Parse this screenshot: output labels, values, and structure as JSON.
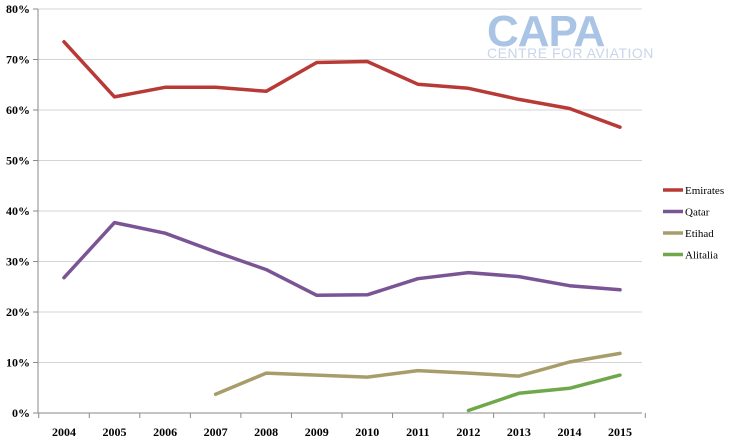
{
  "logo": {
    "main": "CAPA",
    "sub": "CENTRE FOR AVIATION"
  },
  "chart_data": {
    "type": "line",
    "title": "",
    "xlabel": "",
    "ylabel": "",
    "ylim": [
      0,
      80
    ],
    "y_ticks": [
      0,
      10,
      20,
      30,
      40,
      50,
      60,
      70,
      80
    ],
    "y_tick_labels": [
      "0%",
      "10%",
      "20%",
      "30%",
      "40%",
      "50%",
      "60%",
      "70%",
      "80%"
    ],
    "x": [
      "2004",
      "2005",
      "2006",
      "2007",
      "2008",
      "2009",
      "2010",
      "2011",
      "2012",
      "2013",
      "2014",
      "2015"
    ],
    "grid": true,
    "legend_position": "right",
    "series": [
      {
        "name": "Emirates",
        "color": "#b83a36",
        "values": [
          73.5,
          62.6,
          64.5,
          64.5,
          63.7,
          69.4,
          69.6,
          65.1,
          64.3,
          62.1,
          60.3,
          56.6
        ]
      },
      {
        "name": "Qatar",
        "color": "#7a5494",
        "values": [
          26.8,
          37.7,
          35.6,
          31.9,
          28.4,
          23.3,
          23.4,
          26.6,
          27.8,
          27.0,
          25.2,
          24.4
        ]
      },
      {
        "name": "Etihad",
        "color": "#a89d6a",
        "values": [
          null,
          null,
          null,
          3.7,
          7.9,
          7.5,
          7.1,
          8.4,
          7.9,
          7.3,
          10.1,
          11.8
        ]
      },
      {
        "name": "Alitalia",
        "color": "#6fa84a",
        "values": [
          null,
          null,
          null,
          null,
          null,
          null,
          null,
          null,
          0.5,
          3.9,
          4.9,
          7.5
        ]
      }
    ]
  }
}
